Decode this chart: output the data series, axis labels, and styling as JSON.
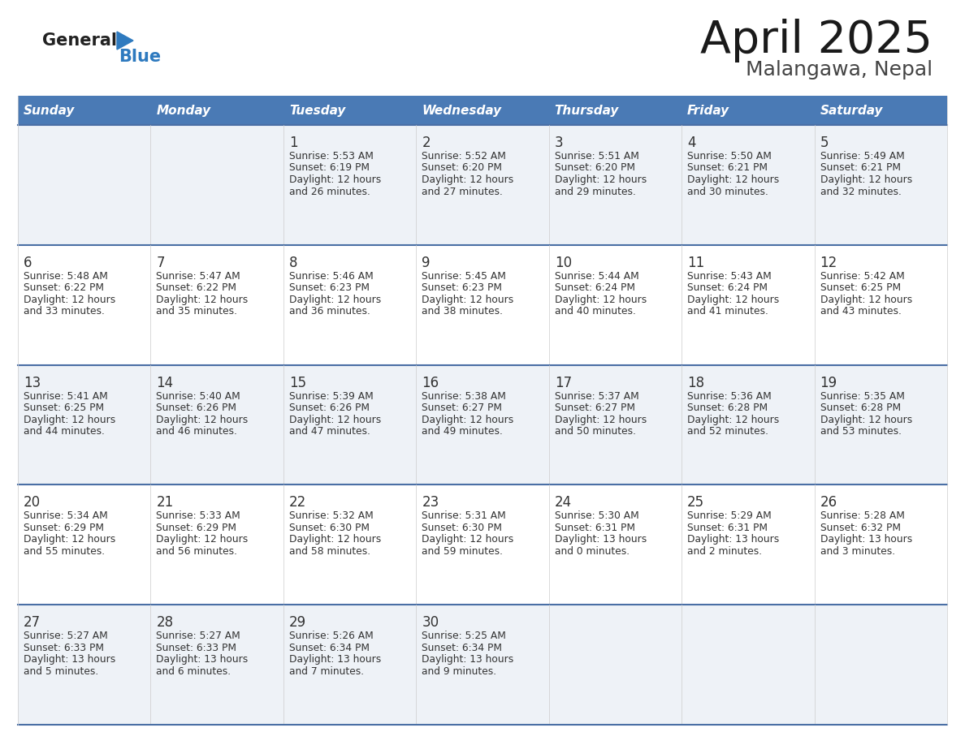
{
  "title": "April 2025",
  "subtitle": "Malangawa, Nepal",
  "header_bg": "#4a7ab5",
  "header_text": "#ffffff",
  "cell_bg_odd": "#eef2f7",
  "cell_bg_even": "#ffffff",
  "divider_color": "#4a6fa5",
  "cell_border_color": "#cccccc",
  "text_color": "#333333",
  "logo_general_color": "#222222",
  "logo_blue_color": "#2e7abf",
  "logo_triangle_color": "#2e7abf",
  "days_of_week": [
    "Sunday",
    "Monday",
    "Tuesday",
    "Wednesday",
    "Thursday",
    "Friday",
    "Saturday"
  ],
  "calendar_data": [
    [
      {
        "day": "",
        "sunrise": "",
        "sunset": "",
        "daylight_line1": "",
        "daylight_line2": ""
      },
      {
        "day": "",
        "sunrise": "",
        "sunset": "",
        "daylight_line1": "",
        "daylight_line2": ""
      },
      {
        "day": "1",
        "sunrise": "Sunrise: 5:53 AM",
        "sunset": "Sunset: 6:19 PM",
        "daylight_line1": "Daylight: 12 hours",
        "daylight_line2": "and 26 minutes."
      },
      {
        "day": "2",
        "sunrise": "Sunrise: 5:52 AM",
        "sunset": "Sunset: 6:20 PM",
        "daylight_line1": "Daylight: 12 hours",
        "daylight_line2": "and 27 minutes."
      },
      {
        "day": "3",
        "sunrise": "Sunrise: 5:51 AM",
        "sunset": "Sunset: 6:20 PM",
        "daylight_line1": "Daylight: 12 hours",
        "daylight_line2": "and 29 minutes."
      },
      {
        "day": "4",
        "sunrise": "Sunrise: 5:50 AM",
        "sunset": "Sunset: 6:21 PM",
        "daylight_line1": "Daylight: 12 hours",
        "daylight_line2": "and 30 minutes."
      },
      {
        "day": "5",
        "sunrise": "Sunrise: 5:49 AM",
        "sunset": "Sunset: 6:21 PM",
        "daylight_line1": "Daylight: 12 hours",
        "daylight_line2": "and 32 minutes."
      }
    ],
    [
      {
        "day": "6",
        "sunrise": "Sunrise: 5:48 AM",
        "sunset": "Sunset: 6:22 PM",
        "daylight_line1": "Daylight: 12 hours",
        "daylight_line2": "and 33 minutes."
      },
      {
        "day": "7",
        "sunrise": "Sunrise: 5:47 AM",
        "sunset": "Sunset: 6:22 PM",
        "daylight_line1": "Daylight: 12 hours",
        "daylight_line2": "and 35 minutes."
      },
      {
        "day": "8",
        "sunrise": "Sunrise: 5:46 AM",
        "sunset": "Sunset: 6:23 PM",
        "daylight_line1": "Daylight: 12 hours",
        "daylight_line2": "and 36 minutes."
      },
      {
        "day": "9",
        "sunrise": "Sunrise: 5:45 AM",
        "sunset": "Sunset: 6:23 PM",
        "daylight_line1": "Daylight: 12 hours",
        "daylight_line2": "and 38 minutes."
      },
      {
        "day": "10",
        "sunrise": "Sunrise: 5:44 AM",
        "sunset": "Sunset: 6:24 PM",
        "daylight_line1": "Daylight: 12 hours",
        "daylight_line2": "and 40 minutes."
      },
      {
        "day": "11",
        "sunrise": "Sunrise: 5:43 AM",
        "sunset": "Sunset: 6:24 PM",
        "daylight_line1": "Daylight: 12 hours",
        "daylight_line2": "and 41 minutes."
      },
      {
        "day": "12",
        "sunrise": "Sunrise: 5:42 AM",
        "sunset": "Sunset: 6:25 PM",
        "daylight_line1": "Daylight: 12 hours",
        "daylight_line2": "and 43 minutes."
      }
    ],
    [
      {
        "day": "13",
        "sunrise": "Sunrise: 5:41 AM",
        "sunset": "Sunset: 6:25 PM",
        "daylight_line1": "Daylight: 12 hours",
        "daylight_line2": "and 44 minutes."
      },
      {
        "day": "14",
        "sunrise": "Sunrise: 5:40 AM",
        "sunset": "Sunset: 6:26 PM",
        "daylight_line1": "Daylight: 12 hours",
        "daylight_line2": "and 46 minutes."
      },
      {
        "day": "15",
        "sunrise": "Sunrise: 5:39 AM",
        "sunset": "Sunset: 6:26 PM",
        "daylight_line1": "Daylight: 12 hours",
        "daylight_line2": "and 47 minutes."
      },
      {
        "day": "16",
        "sunrise": "Sunrise: 5:38 AM",
        "sunset": "Sunset: 6:27 PM",
        "daylight_line1": "Daylight: 12 hours",
        "daylight_line2": "and 49 minutes."
      },
      {
        "day": "17",
        "sunrise": "Sunrise: 5:37 AM",
        "sunset": "Sunset: 6:27 PM",
        "daylight_line1": "Daylight: 12 hours",
        "daylight_line2": "and 50 minutes."
      },
      {
        "day": "18",
        "sunrise": "Sunrise: 5:36 AM",
        "sunset": "Sunset: 6:28 PM",
        "daylight_line1": "Daylight: 12 hours",
        "daylight_line2": "and 52 minutes."
      },
      {
        "day": "19",
        "sunrise": "Sunrise: 5:35 AM",
        "sunset": "Sunset: 6:28 PM",
        "daylight_line1": "Daylight: 12 hours",
        "daylight_line2": "and 53 minutes."
      }
    ],
    [
      {
        "day": "20",
        "sunrise": "Sunrise: 5:34 AM",
        "sunset": "Sunset: 6:29 PM",
        "daylight_line1": "Daylight: 12 hours",
        "daylight_line2": "and 55 minutes."
      },
      {
        "day": "21",
        "sunrise": "Sunrise: 5:33 AM",
        "sunset": "Sunset: 6:29 PM",
        "daylight_line1": "Daylight: 12 hours",
        "daylight_line2": "and 56 minutes."
      },
      {
        "day": "22",
        "sunrise": "Sunrise: 5:32 AM",
        "sunset": "Sunset: 6:30 PM",
        "daylight_line1": "Daylight: 12 hours",
        "daylight_line2": "and 58 minutes."
      },
      {
        "day": "23",
        "sunrise": "Sunrise: 5:31 AM",
        "sunset": "Sunset: 6:30 PM",
        "daylight_line1": "Daylight: 12 hours",
        "daylight_line2": "and 59 minutes."
      },
      {
        "day": "24",
        "sunrise": "Sunrise: 5:30 AM",
        "sunset": "Sunset: 6:31 PM",
        "daylight_line1": "Daylight: 13 hours",
        "daylight_line2": "and 0 minutes."
      },
      {
        "day": "25",
        "sunrise": "Sunrise: 5:29 AM",
        "sunset": "Sunset: 6:31 PM",
        "daylight_line1": "Daylight: 13 hours",
        "daylight_line2": "and 2 minutes."
      },
      {
        "day": "26",
        "sunrise": "Sunrise: 5:28 AM",
        "sunset": "Sunset: 6:32 PM",
        "daylight_line1": "Daylight: 13 hours",
        "daylight_line2": "and 3 minutes."
      }
    ],
    [
      {
        "day": "27",
        "sunrise": "Sunrise: 5:27 AM",
        "sunset": "Sunset: 6:33 PM",
        "daylight_line1": "Daylight: 13 hours",
        "daylight_line2": "and 5 minutes."
      },
      {
        "day": "28",
        "sunrise": "Sunrise: 5:27 AM",
        "sunset": "Sunset: 6:33 PM",
        "daylight_line1": "Daylight: 13 hours",
        "daylight_line2": "and 6 minutes."
      },
      {
        "day": "29",
        "sunrise": "Sunrise: 5:26 AM",
        "sunset": "Sunset: 6:34 PM",
        "daylight_line1": "Daylight: 13 hours",
        "daylight_line2": "and 7 minutes."
      },
      {
        "day": "30",
        "sunrise": "Sunrise: 5:25 AM",
        "sunset": "Sunset: 6:34 PM",
        "daylight_line1": "Daylight: 13 hours",
        "daylight_line2": "and 9 minutes."
      },
      {
        "day": "",
        "sunrise": "",
        "sunset": "",
        "daylight_line1": "",
        "daylight_line2": ""
      },
      {
        "day": "",
        "sunrise": "",
        "sunset": "",
        "daylight_line1": "",
        "daylight_line2": ""
      },
      {
        "day": "",
        "sunrise": "",
        "sunset": "",
        "daylight_line1": "",
        "daylight_line2": ""
      }
    ]
  ]
}
